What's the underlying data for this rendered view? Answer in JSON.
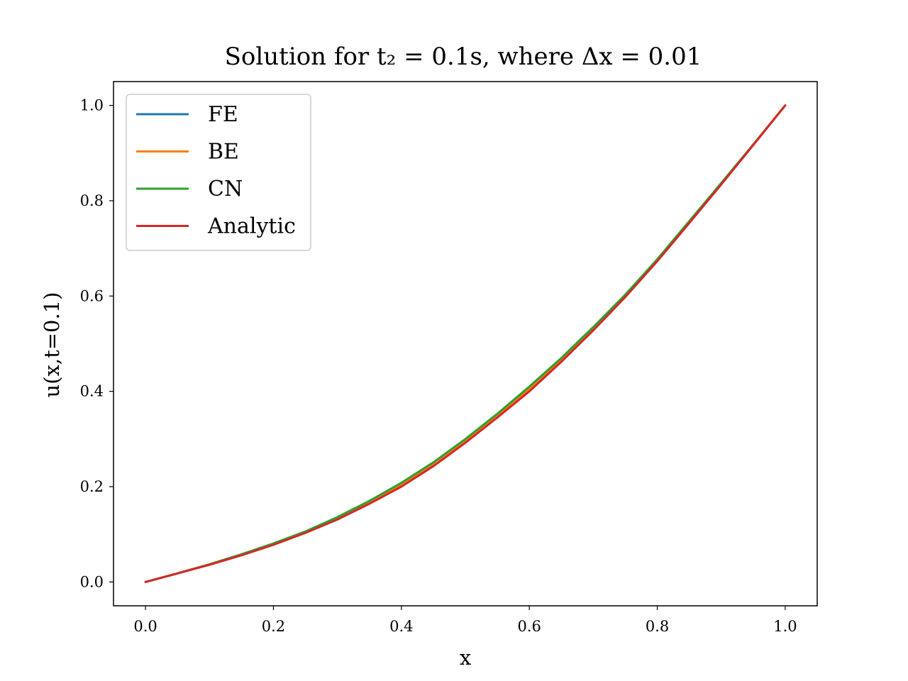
{
  "chart_data": {
    "type": "line",
    "title": "Solution for t₂ = 0.1s, where Δx = 0.01",
    "xlabel": "x",
    "ylabel": "u(x,t=0.1)",
    "xlim": [
      -0.05,
      1.05
    ],
    "ylim": [
      -0.05,
      1.05
    ],
    "xticks": [
      "0.0",
      "0.2",
      "0.4",
      "0.6",
      "0.8",
      "1.0"
    ],
    "yticks": [
      "0.0",
      "0.2",
      "0.4",
      "0.6",
      "0.8",
      "1.0"
    ],
    "grid": false,
    "legend_position": "top-left",
    "x": [
      0.0,
      0.05,
      0.1,
      0.15,
      0.2,
      0.25,
      0.3,
      0.35,
      0.4,
      0.45,
      0.5,
      0.55,
      0.6,
      0.65,
      0.7,
      0.75,
      0.8,
      0.85,
      0.9,
      0.95,
      1.0
    ],
    "series": [
      {
        "name": "FE",
        "color": "#1f77b4",
        "values": [
          0.0,
          0.018,
          0.037,
          0.058,
          0.08,
          0.105,
          0.134,
          0.167,
          0.205,
          0.248,
          0.297,
          0.35,
          0.405,
          0.465,
          0.53,
          0.6,
          0.675,
          0.755,
          0.835,
          0.917,
          1.0
        ]
      },
      {
        "name": "BE",
        "color": "#ff7f0e",
        "values": [
          0.0,
          0.018,
          0.037,
          0.058,
          0.08,
          0.105,
          0.134,
          0.167,
          0.205,
          0.248,
          0.297,
          0.35,
          0.405,
          0.465,
          0.53,
          0.6,
          0.675,
          0.755,
          0.835,
          0.917,
          1.0
        ]
      },
      {
        "name": "CN",
        "color": "#2ca02c",
        "values": [
          0.0,
          0.018,
          0.037,
          0.058,
          0.081,
          0.106,
          0.136,
          0.17,
          0.208,
          0.251,
          0.3,
          0.353,
          0.41,
          0.47,
          0.535,
          0.603,
          0.677,
          0.757,
          0.837,
          0.918,
          1.0
        ]
      },
      {
        "name": "Analytic",
        "color": "#d62728",
        "values": [
          0.0,
          0.018,
          0.036,
          0.056,
          0.078,
          0.103,
          0.131,
          0.164,
          0.2,
          0.243,
          0.292,
          0.345,
          0.4,
          0.462,
          0.528,
          0.598,
          0.673,
          0.753,
          0.834,
          0.917,
          1.0
        ]
      }
    ]
  }
}
